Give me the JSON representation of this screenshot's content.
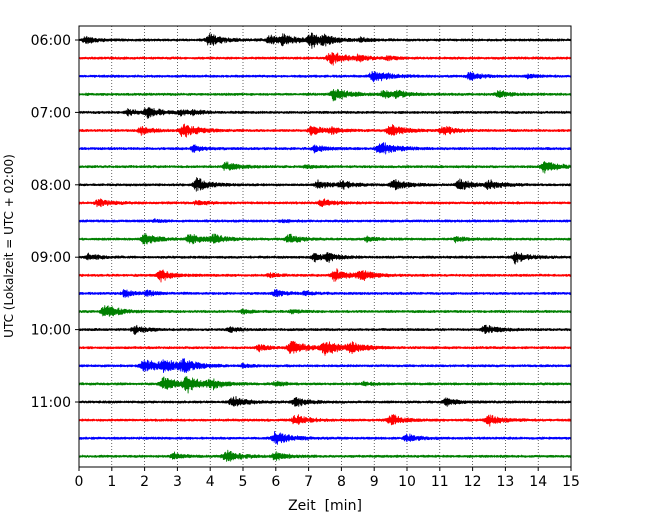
{
  "chart_data": {
    "type": "line",
    "title": "",
    "xlabel": "Zeit  [min]",
    "ylabel": "UTC (Lokalzeit = UTC + 02:00)",
    "xlim": [
      0,
      15
    ],
    "x_ticks": [
      "0",
      "1",
      "2",
      "3",
      "4",
      "5",
      "6",
      "7",
      "8",
      "9",
      "10",
      "11",
      "12",
      "13",
      "14",
      "15"
    ],
    "grid": "vertical dotted lines at each minute",
    "row_interval_minutes": 15,
    "row_start": "06:00",
    "row_count": 24,
    "y_tick_labels": [
      {
        "label": "06:00",
        "row": 0
      },
      {
        "label": "07:00",
        "row": 4
      },
      {
        "label": "08:00",
        "row": 8
      },
      {
        "label": "09:00",
        "row": 12
      },
      {
        "label": "10:00",
        "row": 16
      },
      {
        "label": "11:00",
        "row": 20
      }
    ],
    "trace_colors": [
      "#000000",
      "#ff0000",
      "#0000ff",
      "#008000"
    ],
    "traces": [
      {
        "row": 0,
        "start": "06:00",
        "color": "#000000",
        "bursts": [
          {
            "t": 0.2,
            "a": 0.5
          },
          {
            "t": 4.0,
            "a": 0.9
          },
          {
            "t": 5.8,
            "a": 0.7
          },
          {
            "t": 6.2,
            "a": 0.8
          },
          {
            "t": 7.1,
            "a": 1.0
          },
          {
            "t": 7.5,
            "a": 0.5
          },
          {
            "t": 8.6,
            "a": 0.3
          }
        ]
      },
      {
        "row": 1,
        "start": "06:15",
        "color": "#ff0000",
        "bursts": [
          {
            "t": 7.7,
            "a": 1.0
          },
          {
            "t": 8.5,
            "a": 0.4
          },
          {
            "t": 9.4,
            "a": 0.3
          }
        ]
      },
      {
        "row": 2,
        "start": "06:30",
        "color": "#0000ff",
        "bursts": [
          {
            "t": 9.0,
            "a": 1.0
          },
          {
            "t": 11.9,
            "a": 0.6
          },
          {
            "t": 13.7,
            "a": 0.3
          }
        ]
      },
      {
        "row": 3,
        "start": "06:45",
        "color": "#008000",
        "bursts": [
          {
            "t": 7.8,
            "a": 1.0
          },
          {
            "t": 9.3,
            "a": 0.6
          },
          {
            "t": 9.7,
            "a": 0.5
          },
          {
            "t": 12.8,
            "a": 0.6
          }
        ]
      },
      {
        "row": 4,
        "start": "07:00",
        "color": "#000000",
        "bursts": [
          {
            "t": 1.5,
            "a": 0.5
          },
          {
            "t": 2.1,
            "a": 0.8
          },
          {
            "t": 3.1,
            "a": 0.4
          },
          {
            "t": 3.5,
            "a": 0.3
          }
        ]
      },
      {
        "row": 5,
        "start": "07:15",
        "color": "#ff0000",
        "bursts": [
          {
            "t": 1.9,
            "a": 0.6
          },
          {
            "t": 3.2,
            "a": 1.0
          },
          {
            "t": 7.1,
            "a": 0.7
          },
          {
            "t": 7.7,
            "a": 0.4
          },
          {
            "t": 9.5,
            "a": 0.9
          },
          {
            "t": 11.1,
            "a": 0.7
          }
        ]
      },
      {
        "row": 6,
        "start": "07:30",
        "color": "#0000ff",
        "bursts": [
          {
            "t": 3.5,
            "a": 0.5
          },
          {
            "t": 7.2,
            "a": 0.6
          },
          {
            "t": 9.2,
            "a": 1.0
          }
        ]
      },
      {
        "row": 7,
        "start": "07:45",
        "color": "#008000",
        "bursts": [
          {
            "t": 4.5,
            "a": 0.7
          },
          {
            "t": 6.9,
            "a": 0.3
          },
          {
            "t": 14.2,
            "a": 0.9
          }
        ]
      },
      {
        "row": 8,
        "start": "08:00",
        "color": "#000000",
        "bursts": [
          {
            "t": 3.6,
            "a": 0.9
          },
          {
            "t": 7.3,
            "a": 0.6
          },
          {
            "t": 8.0,
            "a": 0.6
          },
          {
            "t": 9.6,
            "a": 0.8
          },
          {
            "t": 11.6,
            "a": 0.8
          },
          {
            "t": 12.5,
            "a": 0.7
          }
        ]
      },
      {
        "row": 9,
        "start": "08:15",
        "color": "#ff0000",
        "bursts": [
          {
            "t": 0.6,
            "a": 0.6
          },
          {
            "t": 3.6,
            "a": 0.4
          },
          {
            "t": 7.4,
            "a": 0.6
          }
        ]
      },
      {
        "row": 10,
        "start": "08:30",
        "color": "#0000ff",
        "bursts": [
          {
            "t": 2.3,
            "a": 0.2
          },
          {
            "t": 6.2,
            "a": 0.2
          }
        ]
      },
      {
        "row": 11,
        "start": "08:45",
        "color": "#008000",
        "bursts": [
          {
            "t": 2.0,
            "a": 0.8
          },
          {
            "t": 3.4,
            "a": 0.8
          },
          {
            "t": 4.1,
            "a": 0.7
          },
          {
            "t": 6.4,
            "a": 0.7
          },
          {
            "t": 8.8,
            "a": 0.4
          },
          {
            "t": 11.5,
            "a": 0.4
          }
        ]
      },
      {
        "row": 12,
        "start": "09:00",
        "color": "#000000",
        "bursts": [
          {
            "t": 0.3,
            "a": 0.5
          },
          {
            "t": 7.2,
            "a": 0.6
          },
          {
            "t": 7.6,
            "a": 0.5
          },
          {
            "t": 13.3,
            "a": 0.8
          }
        ]
      },
      {
        "row": 13,
        "start": "09:15",
        "color": "#ff0000",
        "bursts": [
          {
            "t": 2.5,
            "a": 0.8
          },
          {
            "t": 5.8,
            "a": 0.3
          },
          {
            "t": 7.8,
            "a": 1.0
          },
          {
            "t": 8.6,
            "a": 0.7
          }
        ]
      },
      {
        "row": 14,
        "start": "09:30",
        "color": "#0000ff",
        "bursts": [
          {
            "t": 1.4,
            "a": 0.5
          },
          {
            "t": 2.1,
            "a": 0.4
          },
          {
            "t": 6.0,
            "a": 0.5
          },
          {
            "t": 6.9,
            "a": 0.3
          }
        ]
      },
      {
        "row": 15,
        "start": "09:45",
        "color": "#008000",
        "bursts": [
          {
            "t": 0.8,
            "a": 1.0
          },
          {
            "t": 5.0,
            "a": 0.3
          },
          {
            "t": 6.5,
            "a": 0.3
          }
        ]
      },
      {
        "row": 16,
        "start": "10:00",
        "color": "#000000",
        "bursts": [
          {
            "t": 1.7,
            "a": 0.6
          },
          {
            "t": 4.6,
            "a": 0.4
          },
          {
            "t": 12.4,
            "a": 0.7
          }
        ]
      },
      {
        "row": 17,
        "start": "10:15",
        "color": "#ff0000",
        "bursts": [
          {
            "t": 5.5,
            "a": 0.5
          },
          {
            "t": 6.5,
            "a": 1.0
          },
          {
            "t": 7.5,
            "a": 1.0
          },
          {
            "t": 8.3,
            "a": 0.8
          }
        ]
      },
      {
        "row": 18,
        "start": "10:30",
        "color": "#0000ff",
        "bursts": [
          {
            "t": 2.0,
            "a": 1.0
          },
          {
            "t": 2.6,
            "a": 1.0
          },
          {
            "t": 3.2,
            "a": 0.9
          },
          {
            "t": 5.0,
            "a": 0.3
          }
        ]
      },
      {
        "row": 19,
        "start": "10:45",
        "color": "#008000",
        "bursts": [
          {
            "t": 2.6,
            "a": 1.0
          },
          {
            "t": 3.3,
            "a": 1.0
          },
          {
            "t": 4.0,
            "a": 0.7
          },
          {
            "t": 6.0,
            "a": 0.4
          },
          {
            "t": 8.7,
            "a": 0.3
          }
        ]
      },
      {
        "row": 20,
        "start": "11:00",
        "color": "#000000",
        "bursts": [
          {
            "t": 4.7,
            "a": 0.8
          },
          {
            "t": 6.6,
            "a": 0.7
          },
          {
            "t": 11.2,
            "a": 0.6
          }
        ]
      },
      {
        "row": 21,
        "start": "11:15",
        "color": "#ff0000",
        "bursts": [
          {
            "t": 6.6,
            "a": 0.8
          },
          {
            "t": 9.5,
            "a": 0.8
          },
          {
            "t": 12.5,
            "a": 0.8
          }
        ]
      },
      {
        "row": 22,
        "start": "11:30",
        "color": "#0000ff",
        "bursts": [
          {
            "t": 6.0,
            "a": 1.0
          },
          {
            "t": 10.0,
            "a": 0.6
          }
        ]
      },
      {
        "row": 23,
        "start": "11:45",
        "color": "#008000",
        "bursts": [
          {
            "t": 2.9,
            "a": 0.5
          },
          {
            "t": 4.5,
            "a": 0.9
          },
          {
            "t": 6.0,
            "a": 0.6
          }
        ]
      }
    ]
  }
}
